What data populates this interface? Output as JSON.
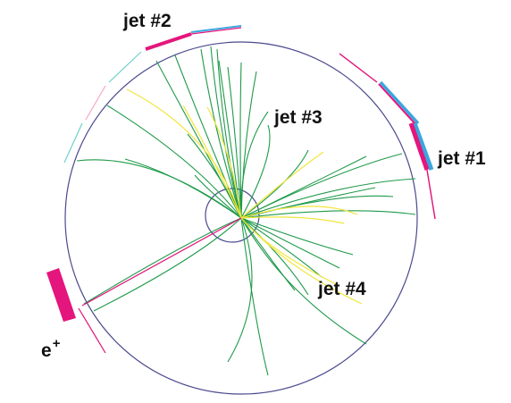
{
  "labels": {
    "jet1": "jet  #1",
    "jet2": "jet  #2",
    "jet3": "jet  #3",
    "jet4": "jet  #4",
    "positron_base": "e",
    "positron_sup": "+"
  },
  "colors": {
    "background": "#ffffff",
    "detector_outline": "#4b4a8e",
    "track_green": "#1f9a4a",
    "track_yellow": "#f0e63c",
    "track_magenta": "#e0107a",
    "calorimeter_magenta": "#e4157c",
    "calorimeter_blue": "#3aa6df",
    "calorimeter_cyan": "#6fd0c8",
    "label_text": "#111111"
  }
}
